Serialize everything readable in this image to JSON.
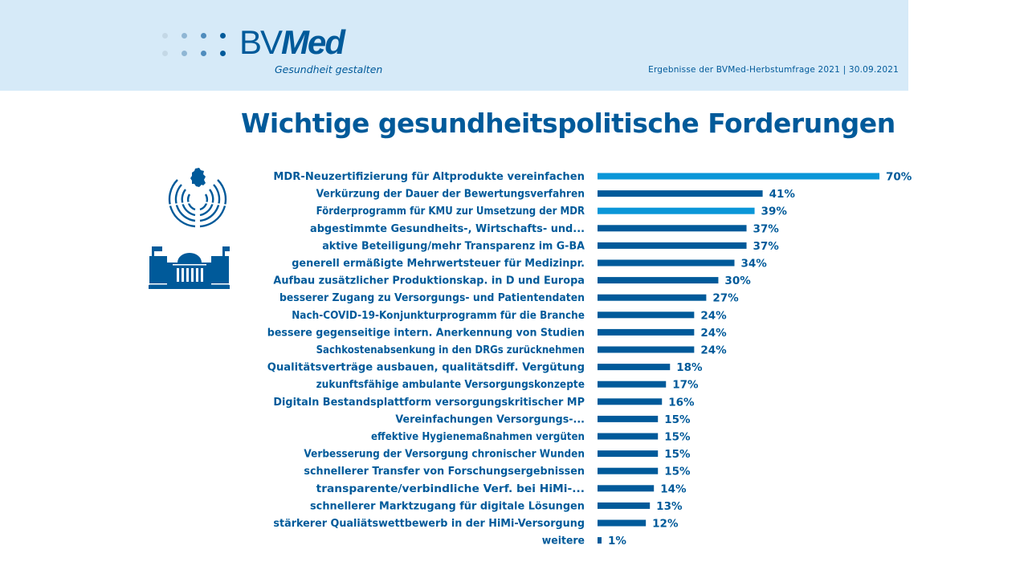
{
  "header": {
    "logo_text_regular": "BV",
    "logo_text_bold": "Med",
    "logo_tagline": "Gesundheit gestalten",
    "survey_note": "Ergebnisse der BVMed-Herbstumfrage 2021 | 30.09.2021",
    "icons": [
      "logo-dots-icon"
    ]
  },
  "colors": {
    "header_bg": "#d6eaf8",
    "primary": "#005a9a",
    "highlight": "#0a96d8"
  },
  "side_icons": [
    "parliament-germany-icon",
    "reichstag-building-icon"
  ],
  "chart_data": {
    "type": "bar",
    "orientation": "horizontal",
    "title": "Wichtige gesundheitspolitische Forderungen",
    "xlabel": "",
    "ylabel": "",
    "unit": "%",
    "xlim": [
      0,
      70
    ],
    "grid": false,
    "legend": "none",
    "categories": [
      "MDR-Neuzertifizierung für Altprodukte  vereinfachen",
      "Verkürzung der Dauer der Bewertungsverfahren",
      "Förderprogramm für KMU zur Umsetzung der MDR",
      "abgestimmte Gesundheits-, Wirtschafts- und...",
      "aktive Beteiligung/mehr Transparenz im G-BA",
      "generell ermäßigte Mehrwertsteuer für Medizinpr.",
      "Aufbau zusätzlicher Produktionskap. in D und Europa",
      "besserer Zugang zu Versorgungs- und Patientendaten",
      "Nach-COVID-19-Konjunkturprogramm für die Branche",
      "bessere gegenseitige intern. Anerkennung von Studien",
      "Sachkostenabsenkung in den DRGs zurücknehmen",
      "Qualitätsverträge ausbauen, qualitätsdiff. Vergütung",
      "zukunftsfähige ambulante Versorgungskonzepte",
      "Digitaln Bestandsplattform versorgungskritischer MP",
      "Vereinfachungen Versorgungs-...",
      "effektive Hygienemaßnahmen vergüten",
      "Verbesserung der Versorgung chronischer Wunden",
      "schnellerer Transfer von Forschungsergebnissen",
      "transparente/verbindliche Verf. bei HiMi-...",
      "schnellerer Marktzugang für digitale Lösungen",
      "stärkerer Qualiätswettbewerb in der HiMi-Versorgung",
      "weitere"
    ],
    "values": [
      70,
      41,
      39,
      37,
      37,
      34,
      30,
      27,
      24,
      24,
      24,
      18,
      17,
      16,
      15,
      15,
      15,
      15,
      14,
      13,
      12,
      1
    ],
    "value_labels": [
      "70%",
      "41%",
      "39%",
      "37%",
      "37%",
      "34%",
      "30%",
      "27%",
      "24%",
      "24%",
      "24%",
      "18%",
      "17%",
      "16%",
      "15%",
      "15%",
      "15%",
      "15%",
      "14%",
      "13%",
      "12%",
      "1%"
    ],
    "highlighted": [
      true,
      false,
      true,
      false,
      false,
      false,
      false,
      false,
      false,
      false,
      false,
      false,
      false,
      false,
      false,
      false,
      false,
      false,
      false,
      false,
      false,
      false
    ]
  }
}
